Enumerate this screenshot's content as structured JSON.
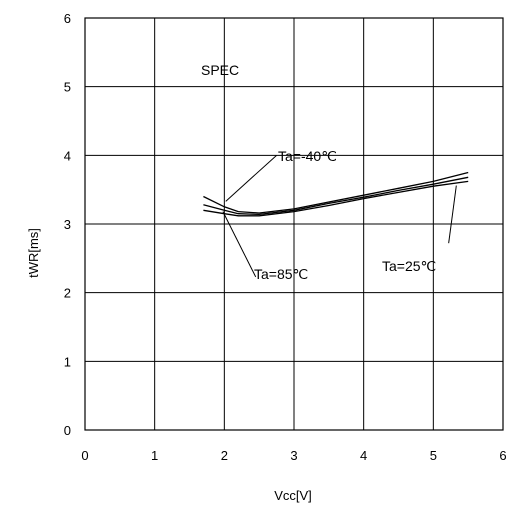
{
  "chart_data": {
    "type": "line",
    "xlabel": "Vcc[V]",
    "ylabel": "tWR[ms]",
    "xlim": [
      0,
      6
    ],
    "ylim": [
      0,
      6
    ],
    "x_ticks": [
      "0",
      "1",
      "2",
      "3",
      "4",
      "5",
      "6"
    ],
    "y_ticks": [
      "0",
      "1",
      "2",
      "3",
      "4",
      "5",
      "6"
    ],
    "grid": true,
    "series": [
      {
        "name": "Ta=-40℃",
        "x": [
          1.7,
          2.0,
          2.2,
          2.5,
          3.0,
          3.5,
          4.0,
          4.5,
          5.0,
          5.5
        ],
        "y": [
          3.4,
          3.25,
          3.18,
          3.16,
          3.22,
          3.32,
          3.42,
          3.52,
          3.62,
          3.75
        ]
      },
      {
        "name": "Ta=25℃",
        "x": [
          1.7,
          2.0,
          2.2,
          2.5,
          3.0,
          3.5,
          4.0,
          4.5,
          5.0,
          5.5
        ],
        "y": [
          3.28,
          3.2,
          3.15,
          3.14,
          3.2,
          3.3,
          3.39,
          3.49,
          3.58,
          3.68
        ]
      },
      {
        "name": "Ta=85℃",
        "x": [
          1.7,
          2.0,
          2.2,
          2.5,
          3.0,
          3.5,
          4.0,
          4.5,
          5.0,
          5.5
        ],
        "y": [
          3.2,
          3.15,
          3.12,
          3.12,
          3.18,
          3.27,
          3.37,
          3.46,
          3.55,
          3.62
        ]
      }
    ],
    "annotations": [
      {
        "text": "SPEC"
      },
      {
        "text": "Ta=-40℃"
      },
      {
        "text": "Ta=25℃"
      },
      {
        "text": "Ta=85℃"
      }
    ]
  }
}
